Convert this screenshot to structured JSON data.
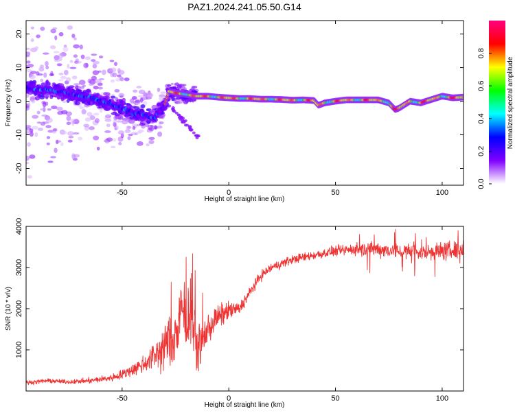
{
  "title": "PAZ1.2024.241.05.50.G14",
  "chart_data": [
    {
      "type": "heatmap",
      "title": "PAZ1.2024.241.05.50.G14",
      "xlabel": "Height of straight line (km)",
      "ylabel": "Frequency (Hz)",
      "xlim": [
        -95,
        110
      ],
      "ylim": [
        -25,
        24
      ],
      "xticks": [
        -50,
        0,
        50,
        100
      ],
      "xtick_labels": [
        "-50",
        "0",
        "50",
        "100"
      ],
      "yticks": [
        -20,
        -10,
        0,
        10,
        20
      ],
      "ytick_labels": [
        "-20",
        "-10",
        "0",
        "10",
        "20"
      ],
      "colorbar": {
        "label": "Normalized spectral amplitude",
        "range": [
          0,
          1
        ],
        "ticks": [
          0.0,
          0.2,
          0.4,
          0.6,
          0.8
        ],
        "tick_labels": [
          "0.0",
          "0.2",
          "0.4",
          "0.6",
          "0.8"
        ],
        "colormap": [
          "#ffffff",
          "#8000ff",
          "#0000ff",
          "#00ffff",
          "#00ff00",
          "#ffff00",
          "#ff0000",
          "#ff0080"
        ]
      },
      "ridge": {
        "x": [
          -95,
          -90,
          -85,
          -80,
          -75,
          -70,
          -65,
          -60,
          -55,
          -50,
          -45,
          -40,
          -35,
          -30,
          -28,
          -25,
          -20,
          -15,
          -10,
          -5,
          0,
          5,
          10,
          15,
          20,
          25,
          30,
          35,
          40,
          42,
          45,
          50,
          55,
          60,
          65,
          70,
          75,
          78,
          80,
          85,
          90,
          95,
          100,
          105,
          110
        ],
        "freq": [
          4,
          3.5,
          3.5,
          3,
          2.5,
          1.5,
          1,
          0,
          -1,
          -2,
          -3.5,
          -4,
          -5,
          -1,
          3,
          2.5,
          2,
          1.5,
          1.5,
          1.2,
          1,
          0.8,
          0.8,
          0.6,
          0.6,
          0.5,
          0.3,
          0.4,
          0.2,
          -1.2,
          -0.5,
          0,
          0.4,
          0.4,
          0.4,
          0.4,
          -0.5,
          -2.5,
          -2,
          0,
          -0.5,
          0.5,
          1.5,
          1,
          1.2
        ]
      }
    },
    {
      "type": "line",
      "xlabel": "Height of straight line (km)",
      "ylabel": "SNR (10 * v/v)",
      "xlim": [
        -95,
        110
      ],
      "ylim": [
        0,
        4000
      ],
      "xticks": [
        -50,
        0,
        50,
        100
      ],
      "xtick_labels": [
        "-50",
        "0",
        "50",
        "100"
      ],
      "yticks": [
        1000,
        2000,
        3000,
        4000
      ],
      "ytick_labels": [
        "1000",
        "2000",
        "3000",
        "4000"
      ],
      "color": "#ee3333",
      "series": [
        {
          "x": [
            -95,
            -85,
            -75,
            -65,
            -55,
            -50,
            -45,
            -40,
            -35,
            -30,
            -25,
            -22,
            -20,
            -18,
            -15,
            -10,
            -5,
            0,
            5,
            10,
            15,
            20,
            25,
            30,
            40,
            50,
            60,
            70,
            80,
            90,
            100,
            110
          ],
          "values": [
            200,
            250,
            220,
            250,
            320,
            400,
            520,
            650,
            850,
            1100,
            1300,
            2000,
            1600,
            2100,
            1000,
            1500,
            1800,
            1950,
            2000,
            2400,
            2800,
            3000,
            3100,
            3200,
            3300,
            3400,
            3450,
            3450,
            3400,
            3380,
            3400,
            3420
          ],
          "noise_amplitude": [
            60,
            60,
            60,
            80,
            100,
            140,
            180,
            250,
            400,
            600,
            800,
            900,
            700,
            800,
            600,
            450,
            350,
            250,
            180,
            160,
            140,
            130,
            130,
            120,
            130,
            140,
            170,
            220,
            220,
            240,
            260,
            280
          ]
        }
      ]
    }
  ]
}
